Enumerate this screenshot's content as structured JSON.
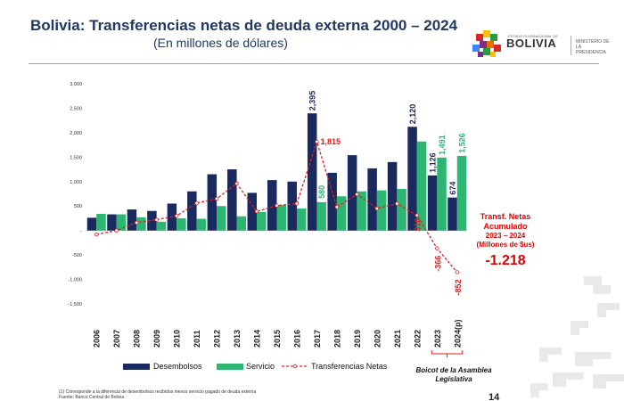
{
  "title": "Bolivia: Transferencias netas de deuda externa 2000 – 2024",
  "subtitle": "(En millones de dólares)",
  "logo": {
    "small_text": "ESTADO PLURINACIONAL DE",
    "main_text": "BOLIVIA",
    "ministry": "MINISTERIO DE LA PRESIDENCIA"
  },
  "colors": {
    "desembolsos": "#1a2a5e",
    "servicio": "#2db672",
    "transferencias": "#e02020",
    "title": "#1f3864",
    "accent_red": "#e00000"
  },
  "chart_data": {
    "type": "bar",
    "categories": [
      "2006",
      "2007",
      "2008",
      "2009",
      "2010",
      "2011",
      "2012",
      "2013",
      "2014",
      "2015",
      "2016",
      "2017",
      "2018",
      "2019",
      "2020",
      "2021",
      "2022",
      "2023",
      "2024(p)"
    ],
    "ylim": [
      -1500,
      3000
    ],
    "yticks": [
      "3,000",
      "2,500",
      "2,000",
      "1,500",
      "1,000",
      "500",
      "-",
      "-500",
      "-1,000",
      "-1,500"
    ],
    "ytick_values": [
      3000,
      2500,
      2000,
      1500,
      1000,
      500,
      0,
      -500,
      -1000,
      -1500
    ],
    "grid": false,
    "legend_position": "bottom",
    "series": [
      {
        "name": "Desembolsos",
        "kind": "bar",
        "values": [
          260,
          330,
          430,
          400,
          550,
          800,
          1150,
          1250,
          770,
          1030,
          1000,
          2395,
          1180,
          1540,
          1270,
          1400,
          2120,
          1126,
          674
        ]
      },
      {
        "name": "Servicio",
        "kind": "bar",
        "values": [
          340,
          330,
          270,
          180,
          250,
          240,
          500,
          290,
          380,
          520,
          450,
          580,
          700,
          800,
          820,
          850,
          1820,
          1491,
          1526
        ]
      },
      {
        "name": "Transferencias Netas",
        "kind": "line",
        "values": [
          -80,
          0,
          160,
          220,
          300,
          560,
          650,
          960,
          390,
          510,
          550,
          1815,
          480,
          740,
          450,
          550,
          310,
          -366,
          -852
        ]
      }
    ],
    "data_labels": {
      "desembolsos": [
        {
          "index": 11,
          "text": "2,395"
        },
        {
          "index": 16,
          "text": "2,120"
        },
        {
          "index": 17,
          "text": "1,126"
        },
        {
          "index": 18,
          "text": "674"
        }
      ],
      "servicio": [
        {
          "index": 11,
          "text": "580"
        },
        {
          "index": 17,
          "text": "1,491"
        },
        {
          "index": 18,
          "text": "1,526"
        }
      ],
      "transferencias": [
        {
          "index": 11,
          "text": "1,815"
        },
        {
          "index": 16,
          "text": "310"
        },
        {
          "index": 17,
          "text": "-366"
        },
        {
          "index": 18,
          "text": "-852"
        }
      ]
    }
  },
  "annotation": {
    "line1": "Transf. Netas",
    "line2": "Acumulado",
    "line3": "2023 – 2024",
    "line4": "(Millones de $us)",
    "value": "-1.218"
  },
  "boicot_label": "Boicot de la Asamblea Legislativa",
  "footnote": {
    "line1": "(1) Corresponde a la diferencia de desembolsos recibidos menos servicio pagado de deuda externa",
    "line2": "Fuente: Banco Central de Bolivia"
  },
  "page_number": "14"
}
